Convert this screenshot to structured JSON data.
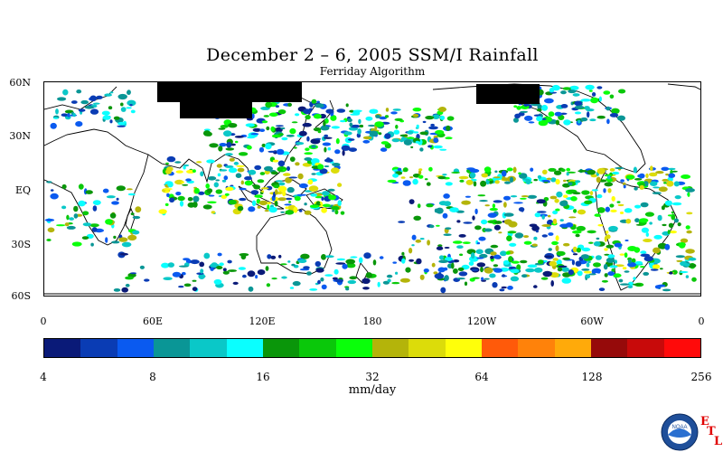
{
  "title": "December 2 – 6, 2005 SSM/I Rainfall",
  "subtitle": "Ferriday Algorithm",
  "lat_labels": [
    "60N",
    "30N",
    "EQ",
    "30S",
    "60S"
  ],
  "lon_labels": [
    "0",
    "60E",
    "120E",
    "180",
    "120W",
    "60W",
    "0"
  ],
  "colorbar": {
    "colors": [
      "#0a1a78",
      "#0a3cb4",
      "#0a5af0",
      "#0a9696",
      "#0ac8c8",
      "#0affff",
      "#0a960a",
      "#0ac80a",
      "#0aff0a",
      "#b4b40a",
      "#dcdc0a",
      "#ffff0a",
      "#ff5a0a",
      "#ff820a",
      "#ffaa0a",
      "#960a0a",
      "#c80a0a",
      "#ff0a0a"
    ],
    "tick_labels": [
      "4",
      "8",
      "16",
      "32",
      "64",
      "128",
      "256"
    ],
    "units": "mm/day"
  },
  "logo": {
    "icon": "noaa-logo",
    "text": "NOAA",
    "letters": [
      "E",
      "T",
      "L"
    ]
  }
}
